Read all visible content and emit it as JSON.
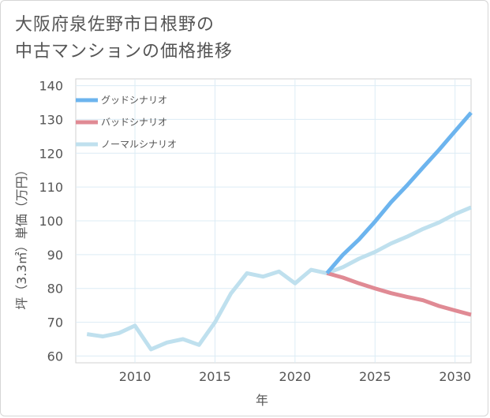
{
  "title": "大阪府泉佐野市日根野の\n中古マンションの価格推移",
  "chart_data": {
    "type": "line",
    "title": "大阪府泉佐野市日根野の中古マンションの価格推移",
    "xlabel": "年",
    "ylabel": "坪（3.3㎡）単価（万円）",
    "xlim": [
      2006.3,
      2031
    ],
    "ylim": [
      58,
      142
    ],
    "xticks": [
      2010,
      2015,
      2020,
      2025,
      2030
    ],
    "yticks": [
      60,
      70,
      80,
      90,
      100,
      110,
      120,
      130,
      140
    ],
    "grid": true,
    "legend_position": "top-left",
    "series": [
      {
        "name": "グッドシナリオ",
        "color": "#6cb4ee",
        "x": [
          2022,
          2023,
          2024,
          2025,
          2026,
          2027,
          2028,
          2029,
          2030,
          2031
        ],
        "y": [
          84.5,
          90.0,
          94.5,
          99.8,
          105.5,
          110.5,
          115.8,
          121.0,
          126.5,
          132.0
        ]
      },
      {
        "name": "バッドシナリオ",
        "color": "#e08a94",
        "x": [
          2022,
          2023,
          2024,
          2025,
          2026,
          2027,
          2028,
          2029,
          2030,
          2031
        ],
        "y": [
          84.5,
          83.2,
          81.5,
          80.0,
          78.6,
          77.5,
          76.5,
          74.8,
          73.5,
          72.2
        ]
      },
      {
        "name": "ノーマルシナリオ",
        "color": "#bfe0ee",
        "x": [
          2007,
          2008,
          2009,
          2010,
          2011,
          2012,
          2013,
          2014,
          2015,
          2016,
          2017,
          2018,
          2019,
          2020,
          2021,
          2022,
          2023,
          2024,
          2025,
          2026,
          2027,
          2028,
          2029,
          2030,
          2031
        ],
        "y": [
          66.5,
          65.8,
          66.8,
          69.0,
          62.0,
          64.0,
          65.0,
          63.3,
          70.0,
          78.5,
          84.5,
          83.5,
          85.0,
          81.5,
          85.5,
          84.5,
          86.3,
          88.8,
          90.8,
          93.3,
          95.3,
          97.6,
          99.5,
          102.0,
          104.0
        ]
      }
    ]
  }
}
